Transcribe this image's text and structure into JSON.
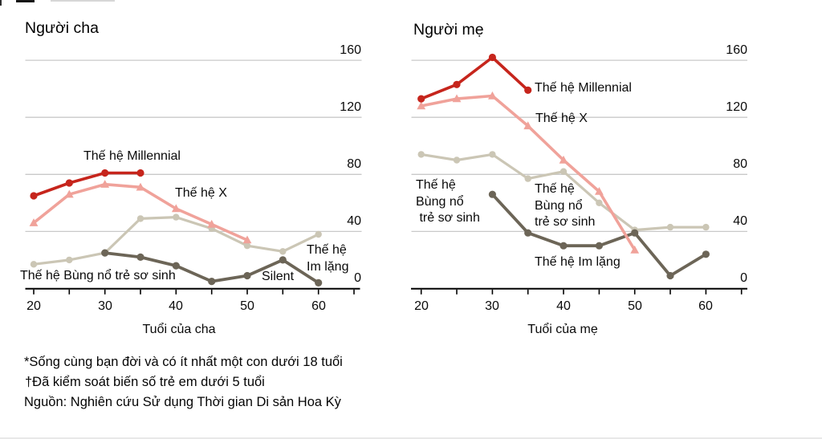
{
  "page": {
    "background": "#ffffff"
  },
  "colors": {
    "millennial": "#c6251c",
    "gen_x": "#f0a29a",
    "boomer": "#cbc6b5",
    "silent": "#6c6557",
    "gridline": "#c9c9c9",
    "axis": "#000000"
  },
  "footnotes": {
    "line1": "*Sống cùng bạn đời và có ít nhất một con dưới 18 tuổi",
    "line2": "†Đã kiểm soát biến số trẻ em dưới 5 tuổi",
    "line3": "Nguồn: Nghiên cứu Sử dụng Thời gian Di sản Hoa Kỳ"
  },
  "chart_data": [
    {
      "type": "line",
      "title": "Người cha",
      "xlabel": "Tuổi của cha",
      "xlim": [
        20,
        65
      ],
      "ylim": [
        0,
        160
      ],
      "grid_values": [
        40,
        80,
        120,
        160
      ],
      "x_tick_values": [
        20,
        25,
        30,
        35,
        40,
        45,
        50,
        55,
        60,
        65
      ],
      "x_tick_labels": [
        "20",
        "30",
        "40",
        "50",
        "60"
      ],
      "y_tick_labels": [
        "160",
        "120",
        "80",
        "40",
        "0"
      ],
      "series": [
        {
          "name": "Thế hệ Bùng nổ trẻ sơ sinh",
          "key": "boomer",
          "color": "#cbc6b5",
          "marker": "circle",
          "x": [
            20,
            25,
            30,
            35,
            40,
            45,
            50,
            55,
            60
          ],
          "values": [
            17,
            20,
            25,
            49,
            50,
            42,
            30,
            26,
            38
          ]
        },
        {
          "name": "Thế hệ Im lặng (Silent)",
          "key": "silent",
          "color": "#6c6557",
          "marker": "circle",
          "x": [
            30,
            35,
            40,
            45,
            50,
            55,
            60
          ],
          "values": [
            25,
            22,
            16,
            5,
            9,
            20,
            4
          ]
        },
        {
          "name": "Thế hệ X",
          "key": "gen_x",
          "color": "#f0a29a",
          "marker": "triangle",
          "x": [
            20,
            25,
            30,
            35,
            40,
            45,
            50
          ],
          "values": [
            46,
            66,
            73,
            71,
            56,
            45,
            34
          ]
        },
        {
          "name": "Thế hệ Millennial",
          "key": "millennial",
          "color": "#c6251c",
          "marker": "circle",
          "x": [
            20,
            25,
            30,
            35
          ],
          "values": [
            65,
            74,
            81,
            81
          ]
        }
      ],
      "annotations": [
        {
          "text": "Thế hệ Millennial"
        },
        {
          "text": "Thế hệ X"
        },
        {
          "text": "Thế hệ Bùng nổ trẻ sơ sinh"
        },
        {
          "text": "Silent"
        },
        {
          "text": "Thế hệ\nIm lặng"
        }
      ]
    },
    {
      "type": "line",
      "title": "Người mẹ",
      "xlabel": "Tuổi của mẹ",
      "xlim": [
        20,
        65
      ],
      "ylim": [
        0,
        160
      ],
      "grid_values": [
        40,
        80,
        120,
        160
      ],
      "x_tick_values": [
        20,
        25,
        30,
        35,
        40,
        45,
        50,
        55,
        60,
        65
      ],
      "x_tick_labels": [
        "20",
        "30",
        "40",
        "50",
        "60"
      ],
      "y_tick_labels": [
        "160",
        "120",
        "80",
        "40",
        "0"
      ],
      "series": [
        {
          "name": "Thế hệ Bùng nổ trẻ sơ sinh",
          "key": "boomer",
          "color": "#cbc6b5",
          "marker": "circle",
          "x": [
            20,
            25,
            30,
            35,
            40,
            45,
            50,
            55,
            60
          ],
          "values": [
            94,
            90,
            94,
            77,
            82,
            60,
            41,
            43,
            43
          ]
        },
        {
          "name": "Thế hệ Im lặng",
          "key": "silent",
          "color": "#6c6557",
          "marker": "circle",
          "x": [
            30,
            35,
            40,
            45,
            50,
            55,
            60
          ],
          "values": [
            66,
            39,
            30,
            30,
            39,
            9,
            24
          ]
        },
        {
          "name": "Thế hệ X",
          "key": "gen_x",
          "color": "#f0a29a",
          "marker": "triangle",
          "x": [
            20,
            25,
            30,
            35,
            40,
            45,
            50
          ],
          "values": [
            128,
            133,
            135,
            114,
            90,
            68,
            27
          ]
        },
        {
          "name": "Thế hệ Millennial",
          "key": "millennial",
          "color": "#c6251c",
          "marker": "circle",
          "x": [
            20,
            25,
            30,
            35
          ],
          "values": [
            133,
            143,
            162,
            139
          ]
        }
      ],
      "annotations": [
        {
          "text": "Thế hệ Millennial"
        },
        {
          "text": "Thế hệ X"
        },
        {
          "text": "Thế hệ\nBùng nổ\n trẻ sơ sinh"
        },
        {
          "text": "Thế hệ\nBùng nổ\ntrẻ sơ sinh"
        },
        {
          "text": "Thế hệ Im lặng"
        }
      ]
    }
  ]
}
